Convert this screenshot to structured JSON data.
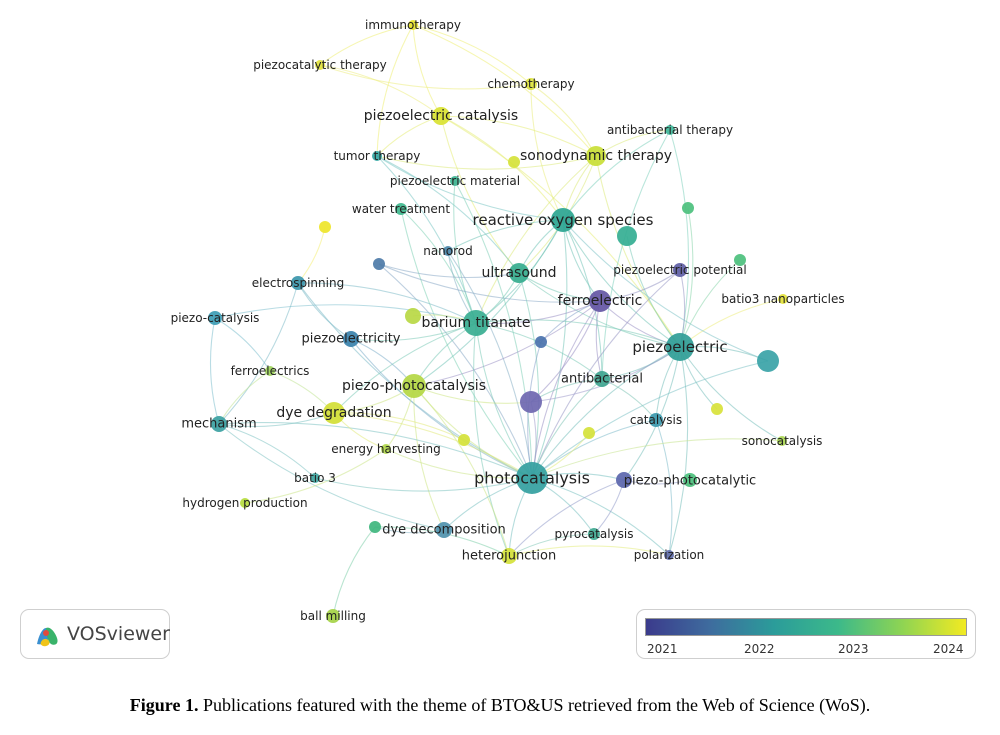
{
  "network": {
    "nodes": [
      {
        "id": "immunotherapy",
        "label": "immunotherapy",
        "color": "#e7e52a"
      },
      {
        "id": "piezocatalytic_therapy",
        "label": "piezocatalytic therapy",
        "color": "#e2e33c"
      },
      {
        "id": "chemotherapy",
        "label": "chemotherapy",
        "color": "#dde43e"
      },
      {
        "id": "piezoelectric_catalysis",
        "label": "piezoelectric catalysis",
        "color": "#d9e231"
      },
      {
        "id": "antibacterial_therapy",
        "label": "antibacterial therapy",
        "color": "#3fb89a"
      },
      {
        "id": "tumor_therapy",
        "label": "tumor therapy",
        "color": "#34a7a4"
      },
      {
        "id": "sonodynamic_therapy",
        "label": "sonodynamic therapy",
        "color": "#c9de36"
      },
      {
        "id": "sdt_dot",
        "label": "",
        "color": "#d5e23a"
      },
      {
        "id": "piezoelectric_material",
        "label": "piezoelectric material",
        "color": "#3db591"
      },
      {
        "id": "water_treatment",
        "label": "water treatment",
        "color": "#3fb88e"
      },
      {
        "id": "reactive_oxygen_species",
        "label": "reactive oxygen species",
        "color": "#2ba591"
      },
      {
        "id": "ros_dot",
        "label": "",
        "color": "#34ae92"
      },
      {
        "id": "green_dot1",
        "label": "",
        "color": "#4cc07d"
      },
      {
        "id": "yellow_dot1",
        "label": "",
        "color": "#eee52a"
      },
      {
        "id": "nanorod",
        "label": "nanorod",
        "color": "#4a86a9"
      },
      {
        "id": "blue_dot1",
        "label": "",
        "color": "#4d7ba8"
      },
      {
        "id": "ultrasound",
        "label": "ultrasound",
        "color": "#35ad8e"
      },
      {
        "id": "piezoelectric_potential",
        "label": "piezoelectric potential",
        "color": "#5f5fa5"
      },
      {
        "id": "green_dot2",
        "label": "",
        "color": "#4cc07d"
      },
      {
        "id": "electrospinning",
        "label": "electrospinning",
        "color": "#3b96ab"
      },
      {
        "id": "ferroelectric",
        "label": "ferroelectric",
        "color": "#6456a4"
      },
      {
        "id": "batio3_nanoparticles",
        "label": "batio3 nanoparticles",
        "color": "#e4e339"
      },
      {
        "id": "piezo_catalysis",
        "label": "piezo-catalysis",
        "color": "#3c9cb4"
      },
      {
        "id": "barium_titanate",
        "label": "barium titanate",
        "color": "#38ae91"
      },
      {
        "id": "bt_dot",
        "label": "",
        "color": "#b8d844"
      },
      {
        "id": "piezoelectricity",
        "label": "piezoelectricity",
        "color": "#3a82ad"
      },
      {
        "id": "piezoelectric",
        "label": "piezoelectric",
        "color": "#2f9d96"
      },
      {
        "id": "teal_dot",
        "label": "",
        "color": "#3aa3a7"
      },
      {
        "id": "blue_dot2",
        "label": "",
        "color": "#4a72ad"
      },
      {
        "id": "ferroelectrics",
        "label": "ferroelectrics",
        "color": "#9fd55c"
      },
      {
        "id": "piezo_photocatalysis",
        "label": "piezo-photocatalysis",
        "color": "#b4d743"
      },
      {
        "id": "antibacterial",
        "label": "antibacterial",
        "color": "#3ea58f"
      },
      {
        "id": "purple_dot",
        "label": "",
        "color": "#6e67b0"
      },
      {
        "id": "yellow_dot2",
        "label": "",
        "color": "#d8e23a"
      },
      {
        "id": "mechanism",
        "label": "mechanism",
        "color": "#3ba1a2"
      },
      {
        "id": "dye_degradation",
        "label": "dye degradation",
        "color": "#d2de35"
      },
      {
        "id": "catalysis",
        "label": "catalysis",
        "color": "#3b98ad"
      },
      {
        "id": "sonocatalysis",
        "label": "sonocatalysis",
        "color": "#a9d652"
      },
      {
        "id": "yellow_dot3",
        "label": "",
        "color": "#d5e23a"
      },
      {
        "id": "yellow_dot4",
        "label": "",
        "color": "#d5e23a"
      },
      {
        "id": "energy_harvesting",
        "label": "energy harvesting",
        "color": "#b1d84c"
      },
      {
        "id": "batio_3",
        "label": "batio 3",
        "color": "#3ea5a0"
      },
      {
        "id": "photocatalysis",
        "label": "photocatalysis",
        "color": "#33a0a0"
      },
      {
        "id": "piezo_photocatalytic",
        "label": "piezo-photocatalytic",
        "color": "#5b66ad"
      },
      {
        "id": "green_dot3",
        "label": "",
        "color": "#4cc07d"
      },
      {
        "id": "hydrogen_production",
        "label": "hydrogen production",
        "color": "#b6dc3e"
      },
      {
        "id": "dye_decomposition",
        "label": "dye decomposition",
        "color": "#4f91ad"
      },
      {
        "id": "dyedec_dot",
        "label": "",
        "color": "#3fb67e"
      },
      {
        "id": "pyrocatalysis",
        "label": "pyrocatalysis",
        "color": "#41aa92"
      },
      {
        "id": "heterojunction",
        "label": "heterojunction",
        "color": "#d5e23a"
      },
      {
        "id": "polarization",
        "label": "polarization",
        "color": "#5f6cab"
      },
      {
        "id": "ball_milling",
        "label": "ball milling",
        "color": "#a5d246"
      }
    ],
    "edges": [
      [
        "immunotherapy",
        "piezocatalytic_therapy"
      ],
      [
        "immunotherapy",
        "chemotherapy"
      ],
      [
        "immunotherapy",
        "piezoelectric_catalysis"
      ],
      [
        "immunotherapy",
        "sonodynamic_therapy"
      ],
      [
        "immunotherapy",
        "tumor_therapy"
      ],
      [
        "piezocatalytic_therapy",
        "piezoelectric_catalysis"
      ],
      [
        "piezocatalytic_therapy",
        "chemotherapy"
      ],
      [
        "chemotherapy",
        "sonodynamic_therapy"
      ],
      [
        "chemotherapy",
        "reactive_oxygen_species"
      ],
      [
        "piezoelectric_catalysis",
        "sonodynamic_therapy"
      ],
      [
        "piezoelectric_catalysis",
        "tumor_therapy"
      ],
      [
        "piezoelectric_catalysis",
        "reactive_oxygen_species"
      ],
      [
        "piezoelectric_catalysis",
        "ultrasound"
      ],
      [
        "piezoelectric_catalysis",
        "piezoelectric"
      ],
      [
        "sonodynamic_therapy",
        "reactive_oxygen_species"
      ],
      [
        "sonodynamic_therapy",
        "ultrasound"
      ],
      [
        "sonodynamic_therapy",
        "piezoelectric"
      ],
      [
        "sonodynamic_therapy",
        "tumor_therapy"
      ],
      [
        "sonodynamic_therapy",
        "barium_titanate"
      ],
      [
        "sonodynamic_therapy",
        "antibacterial_therapy"
      ],
      [
        "antibacterial_therapy",
        "antibacterial"
      ],
      [
        "antibacterial_therapy",
        "piezoelectric"
      ],
      [
        "antibacterial_therapy",
        "reactive_oxygen_species"
      ],
      [
        "tumor_therapy",
        "barium_titanate"
      ],
      [
        "tumor_therapy",
        "reactive_oxygen_species"
      ],
      [
        "tumor_therapy",
        "ultrasound"
      ],
      [
        "piezoelectric_material",
        "barium_titanate"
      ],
      [
        "piezoelectric_material",
        "photocatalysis"
      ],
      [
        "water_treatment",
        "photocatalysis"
      ],
      [
        "water_treatment",
        "barium_titanate"
      ],
      [
        "reactive_oxygen_species",
        "ultrasound"
      ],
      [
        "reactive_oxygen_species",
        "barium_titanate"
      ],
      [
        "reactive_oxygen_species",
        "piezoelectric"
      ],
      [
        "reactive_oxygen_species",
        "photocatalysis"
      ],
      [
        "reactive_oxygen_species",
        "ferroelectric"
      ],
      [
        "reactive_oxygen_species",
        "antibacterial"
      ],
      [
        "reactive_oxygen_species",
        "nanorod"
      ],
      [
        "reactive_oxygen_species",
        "piezo_photocatalysis"
      ],
      [
        "ros_dot",
        "piezoelectric"
      ],
      [
        "green_dot1",
        "piezoelectric"
      ],
      [
        "green_dot2",
        "piezoelectric"
      ],
      [
        "yellow_dot1",
        "electrospinning"
      ],
      [
        "nanorod",
        "barium_titanate"
      ],
      [
        "nanorod",
        "photocatalysis"
      ],
      [
        "blue_dot1",
        "ferroelectric"
      ],
      [
        "blue_dot1",
        "photocatalysis"
      ],
      [
        "blue_dot1",
        "ultrasound"
      ],
      [
        "ultrasound",
        "barium_titanate"
      ],
      [
        "ultrasound",
        "piezoelectric"
      ],
      [
        "ultrasound",
        "photocatalysis"
      ],
      [
        "ultrasound",
        "ferroelectric"
      ],
      [
        "piezoelectric_potential",
        "piezoelectric"
      ],
      [
        "piezoelectric_potential",
        "photocatalysis"
      ],
      [
        "piezoelectric_potential",
        "ferroelectric"
      ],
      [
        "electrospinning",
        "piezoelectricity"
      ],
      [
        "electrospinning",
        "barium_titanate"
      ],
      [
        "electrospinning",
        "photocatalysis"
      ],
      [
        "electrospinning",
        "mechanism"
      ],
      [
        "ferroelectric",
        "photocatalysis"
      ],
      [
        "ferroelectric",
        "barium_titanate"
      ],
      [
        "ferroelectric",
        "piezoelectric"
      ],
      [
        "ferroelectric",
        "piezo_photocatalysis"
      ],
      [
        "ferroelectric",
        "antibacterial"
      ],
      [
        "ferroelectric",
        "purple_dot"
      ],
      [
        "batio3_nanoparticles",
        "piezoelectric"
      ],
      [
        "piezo_catalysis",
        "barium_titanate"
      ],
      [
        "piezo_catalysis",
        "mechanism"
      ],
      [
        "piezo_catalysis",
        "ferroelectrics"
      ],
      [
        "barium_titanate",
        "photocatalysis"
      ],
      [
        "barium_titanate",
        "piezoelectric"
      ],
      [
        "barium_titanate",
        "piezo_photocatalysis"
      ],
      [
        "barium_titanate",
        "piezoelectricity"
      ],
      [
        "barium_titanate",
        "dye_degradation"
      ],
      [
        "barium_titanate",
        "antibacterial"
      ],
      [
        "barium_titanate",
        "heterojunction"
      ],
      [
        "bt_dot",
        "barium_titanate"
      ],
      [
        "piezoelectricity",
        "photocatalysis"
      ],
      [
        "piezoelectricity",
        "piezo_photocatalysis"
      ],
      [
        "piezoelectric",
        "photocatalysis"
      ],
      [
        "piezoelectric",
        "antibacterial"
      ],
      [
        "piezoelectric",
        "catalysis"
      ],
      [
        "piezoelectric",
        "piezo_photocatalytic"
      ],
      [
        "piezoelectric",
        "sonocatalysis"
      ],
      [
        "piezoelectric",
        "teal_dot"
      ],
      [
        "piezoelectric",
        "yellow_dot2"
      ],
      [
        "piezoelectric",
        "polarization"
      ],
      [
        "teal_dot",
        "photocatalysis"
      ],
      [
        "teal_dot",
        "reactive_oxygen_species"
      ],
      [
        "blue_dot2",
        "photocatalysis"
      ],
      [
        "blue_dot2",
        "ferroelectric"
      ],
      [
        "ferroelectrics",
        "mechanism"
      ],
      [
        "ferroelectrics",
        "dye_degradation"
      ],
      [
        "piezo_photocatalysis",
        "photocatalysis"
      ],
      [
        "piezo_photocatalysis",
        "dye_degradation"
      ],
      [
        "piezo_photocatalysis",
        "purple_dot"
      ],
      [
        "piezo_photocatalysis",
        "heterojunction"
      ],
      [
        "piezo_photocatalysis",
        "dye_decomposition"
      ],
      [
        "piezo_photocatalysis",
        "energy_harvesting"
      ],
      [
        "antibacterial",
        "photocatalysis"
      ],
      [
        "antibacterial",
        "catalysis"
      ],
      [
        "antibacterial",
        "purple_dot"
      ],
      [
        "purple_dot",
        "photocatalysis"
      ],
      [
        "purple_dot",
        "piezoelectric"
      ],
      [
        "mechanism",
        "photocatalysis"
      ],
      [
        "mechanism",
        "dye_degradation"
      ],
      [
        "mechanism",
        "batio_3"
      ],
      [
        "mechanism",
        "dye_decomposition"
      ],
      [
        "dye_degradation",
        "photocatalysis"
      ],
      [
        "dye_degradation",
        "energy_harvesting"
      ],
      [
        "dye_degradation",
        "yellow_dot3"
      ],
      [
        "catalysis",
        "photocatalysis"
      ],
      [
        "catalysis",
        "polarization"
      ],
      [
        "sonocatalysis",
        "photocatalysis"
      ],
      [
        "yellow_dot4",
        "photocatalysis"
      ],
      [
        "energy_harvesting",
        "photocatalysis"
      ],
      [
        "energy_harvesting",
        "hydrogen_production"
      ],
      [
        "batio_3",
        "photocatalysis"
      ],
      [
        "photocatalysis",
        "piezo_photocatalytic"
      ],
      [
        "photocatalysis",
        "dye_decomposition"
      ],
      [
        "photocatalysis",
        "pyrocatalysis"
      ],
      [
        "photocatalysis",
        "heterojunction"
      ],
      [
        "photocatalysis",
        "polarization"
      ],
      [
        "piezo_photocatalytic",
        "green_dot3"
      ],
      [
        "piezo_photocatalytic",
        "pyrocatalysis"
      ],
      [
        "piezo_photocatalytic",
        "heterojunction"
      ],
      [
        "dye_decomposition",
        "dyedec_dot"
      ],
      [
        "dyedec_dot",
        "ball_milling"
      ],
      [
        "dyedec_dot",
        "heterojunction"
      ],
      [
        "pyrocatalysis",
        "heterojunction"
      ],
      [
        "heterojunction",
        "polarization"
      ]
    ]
  },
  "brand": {
    "name": "VOSviewer"
  },
  "legend": {
    "ticks": [
      "2021",
      "2022",
      "2023",
      "2024"
    ],
    "colors": [
      "#3b3b8c",
      "#2b9c9a",
      "#8ed453",
      "#f2ea22"
    ]
  },
  "caption": {
    "label": "Figure 1.",
    "text": " Publications featured with the theme of BTO&US retrieved from the Web of Science (WoS)."
  }
}
